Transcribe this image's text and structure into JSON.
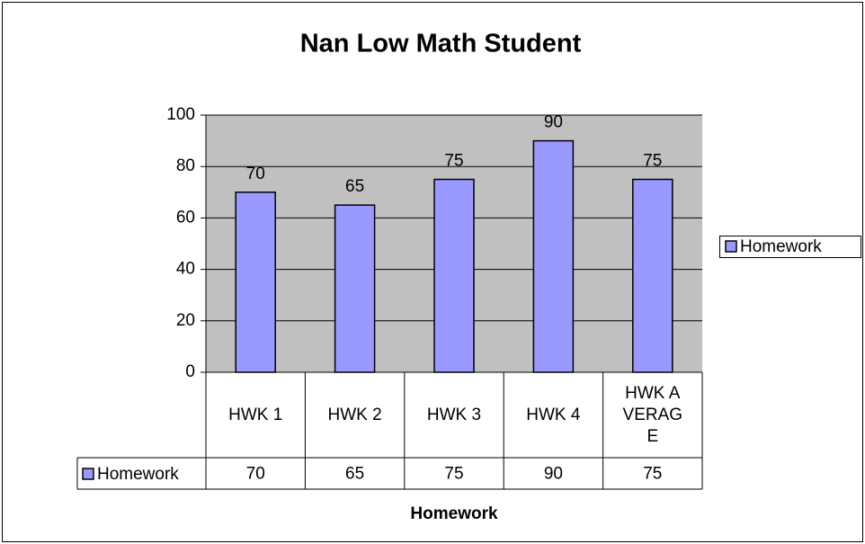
{
  "chart_data": {
    "type": "bar",
    "title": "Nan Low Math Student",
    "x_label": "Homework",
    "categories": [
      "HWK 1",
      "HWK 2",
      "HWK 3",
      "HWK 4",
      "HWK AVERAGE"
    ],
    "series": [
      {
        "name": "Homework",
        "color": "#9999ff",
        "values": [
          70,
          65,
          75,
          90,
          75
        ]
      }
    ],
    "ylim": [
      0,
      100
    ],
    "yticks": [
      0,
      20,
      40,
      60,
      80,
      100
    ],
    "grid": true,
    "legend": "right",
    "data_table": true
  }
}
